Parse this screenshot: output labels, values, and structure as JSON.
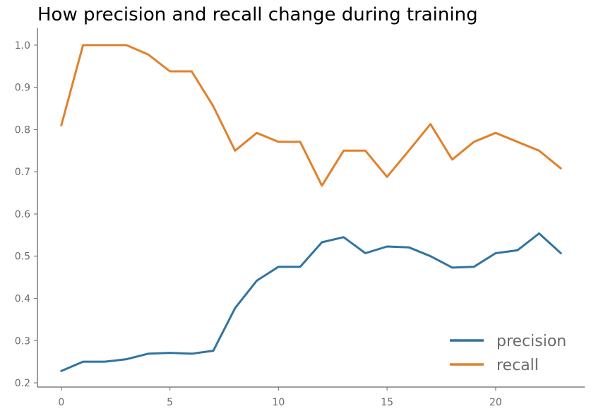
{
  "chart_data": {
    "type": "line",
    "title": "How precision and recall change during training",
    "xlabel": "",
    "ylabel": "",
    "x": [
      0,
      1,
      2,
      3,
      4,
      5,
      6,
      7,
      8,
      9,
      10,
      11,
      12,
      13,
      14,
      15,
      16,
      17,
      18,
      19,
      20,
      21,
      22,
      23
    ],
    "xlim": [
      -1.1,
      24.1
    ],
    "ylim": [
      0.19,
      1.04
    ],
    "xticks": [
      0,
      5,
      10,
      15,
      20
    ],
    "xtick_labels": [
      "0",
      "5",
      "10",
      "15",
      "20"
    ],
    "yticks": [
      0.2,
      0.3,
      0.4,
      0.5,
      0.6,
      0.7,
      0.8,
      0.9,
      1.0
    ],
    "ytick_labels": [
      "0.2",
      "0.3",
      "0.4",
      "0.5",
      "0.6",
      "0.7",
      "0.8",
      "0.9",
      "1.0"
    ],
    "grid": false,
    "legend_position": "bottom-right",
    "series": [
      {
        "name": "precision",
        "color": "#3274a1",
        "values": [
          0.228,
          0.25,
          0.25,
          0.256,
          0.269,
          0.271,
          0.269,
          0.276,
          0.377,
          0.442,
          0.475,
          0.475,
          0.533,
          0.545,
          0.507,
          0.523,
          0.521,
          0.5,
          0.473,
          0.475,
          0.507,
          0.514,
          0.554,
          0.507
        ]
      },
      {
        "name": "recall",
        "color": "#e1812c",
        "values": [
          0.81,
          1.0,
          1.0,
          1.0,
          0.978,
          0.938,
          0.938,
          0.855,
          0.75,
          0.792,
          0.771,
          0.771,
          0.667,
          0.75,
          0.75,
          0.688,
          0.75,
          0.813,
          0.729,
          0.771,
          0.792,
          0.771,
          0.75,
          0.708
        ]
      }
    ]
  }
}
